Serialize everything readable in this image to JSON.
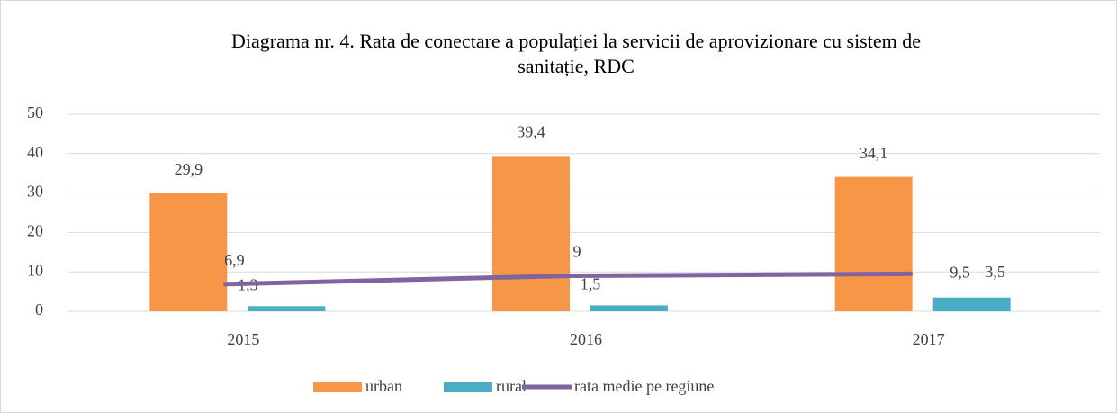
{
  "chart_data": {
    "type": "bar",
    "title": "Diagrama nr. 4. Rata de conectare a populației la servicii de aprovizionare cu sistem de sanitație, RDC",
    "categories": [
      "2015",
      "2016",
      "2017"
    ],
    "series": [
      {
        "name": "urban",
        "color": "#f79646",
        "values": [
          29.9,
          39.4,
          34.1
        ],
        "value_labels": [
          "29,9",
          "39,4",
          "34,1"
        ]
      },
      {
        "name": "rural",
        "color": "#4bacc6",
        "values": [
          1.3,
          1.5,
          3.5
        ],
        "value_labels": [
          "1,3",
          "1,5",
          "3,5"
        ]
      },
      {
        "name": "rata medie pe regiune",
        "type": "line",
        "color": "#8064a2",
        "values": [
          6.9,
          9,
          9.5
        ],
        "value_labels": [
          "6,9",
          "9",
          "9,5"
        ]
      }
    ],
    "ylim": [
      0,
      50
    ],
    "yticks": [
      0,
      10,
      20,
      30,
      40,
      50
    ],
    "grid": true,
    "legend": "bottom"
  }
}
